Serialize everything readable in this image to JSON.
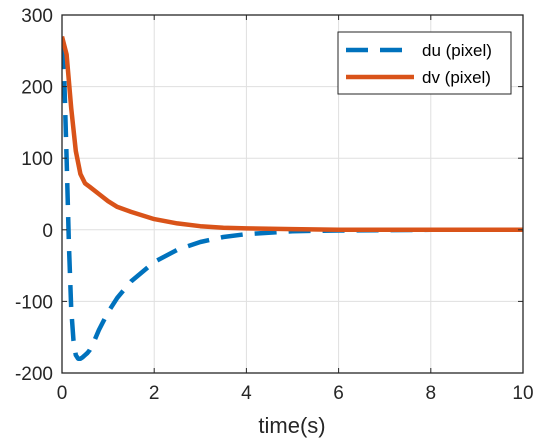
{
  "chart_data": {
    "type": "line",
    "title": "",
    "xlabel": "time(s)",
    "ylabel": "",
    "xlim": [
      0,
      10
    ],
    "ylim": [
      -200,
      300
    ],
    "xticks": [
      0,
      2,
      4,
      6,
      8,
      10
    ],
    "xtick_labels": [
      "0",
      "2",
      "4",
      "6",
      "8",
      "10"
    ],
    "yticks": [
      -200,
      -100,
      0,
      100,
      200,
      300
    ],
    "ytick_labels": [
      "-200",
      "-100",
      "0",
      "100",
      "200",
      "300"
    ],
    "grid": true,
    "legend_position": "top-right",
    "series": [
      {
        "name": "du (pixel)",
        "color": "#0072BD",
        "style": "dashed",
        "x": [
          0,
          0.05,
          0.1,
          0.15,
          0.2,
          0.25,
          0.3,
          0.35,
          0.4,
          0.45,
          0.5,
          0.55,
          0.6,
          0.7,
          0.8,
          1.0,
          1.2,
          1.5,
          2.0,
          2.5,
          3.0,
          3.5,
          4.0,
          5.0,
          6.0,
          8.0,
          10.0
        ],
        "y": [
          255,
          210,
          100,
          -20,
          -110,
          -155,
          -175,
          -180,
          -180,
          -178,
          -175,
          -172,
          -168,
          -155,
          -140,
          -115,
          -95,
          -72,
          -45,
          -28,
          -17,
          -10,
          -6,
          -2,
          -1,
          0,
          0
        ]
      },
      {
        "name": "dv (pixel)",
        "color": "#D95319",
        "style": "solid",
        "x": [
          0,
          0.1,
          0.2,
          0.3,
          0.4,
          0.5,
          0.6,
          0.8,
          1.0,
          1.2,
          1.5,
          2.0,
          2.5,
          3.0,
          3.5,
          4.0,
          5.0,
          6.0,
          8.0,
          10.0
        ],
        "y": [
          270,
          245,
          170,
          110,
          78,
          65,
          60,
          50,
          40,
          32,
          25,
          15,
          9,
          5,
          3,
          2,
          1,
          0,
          0,
          0
        ]
      }
    ]
  }
}
